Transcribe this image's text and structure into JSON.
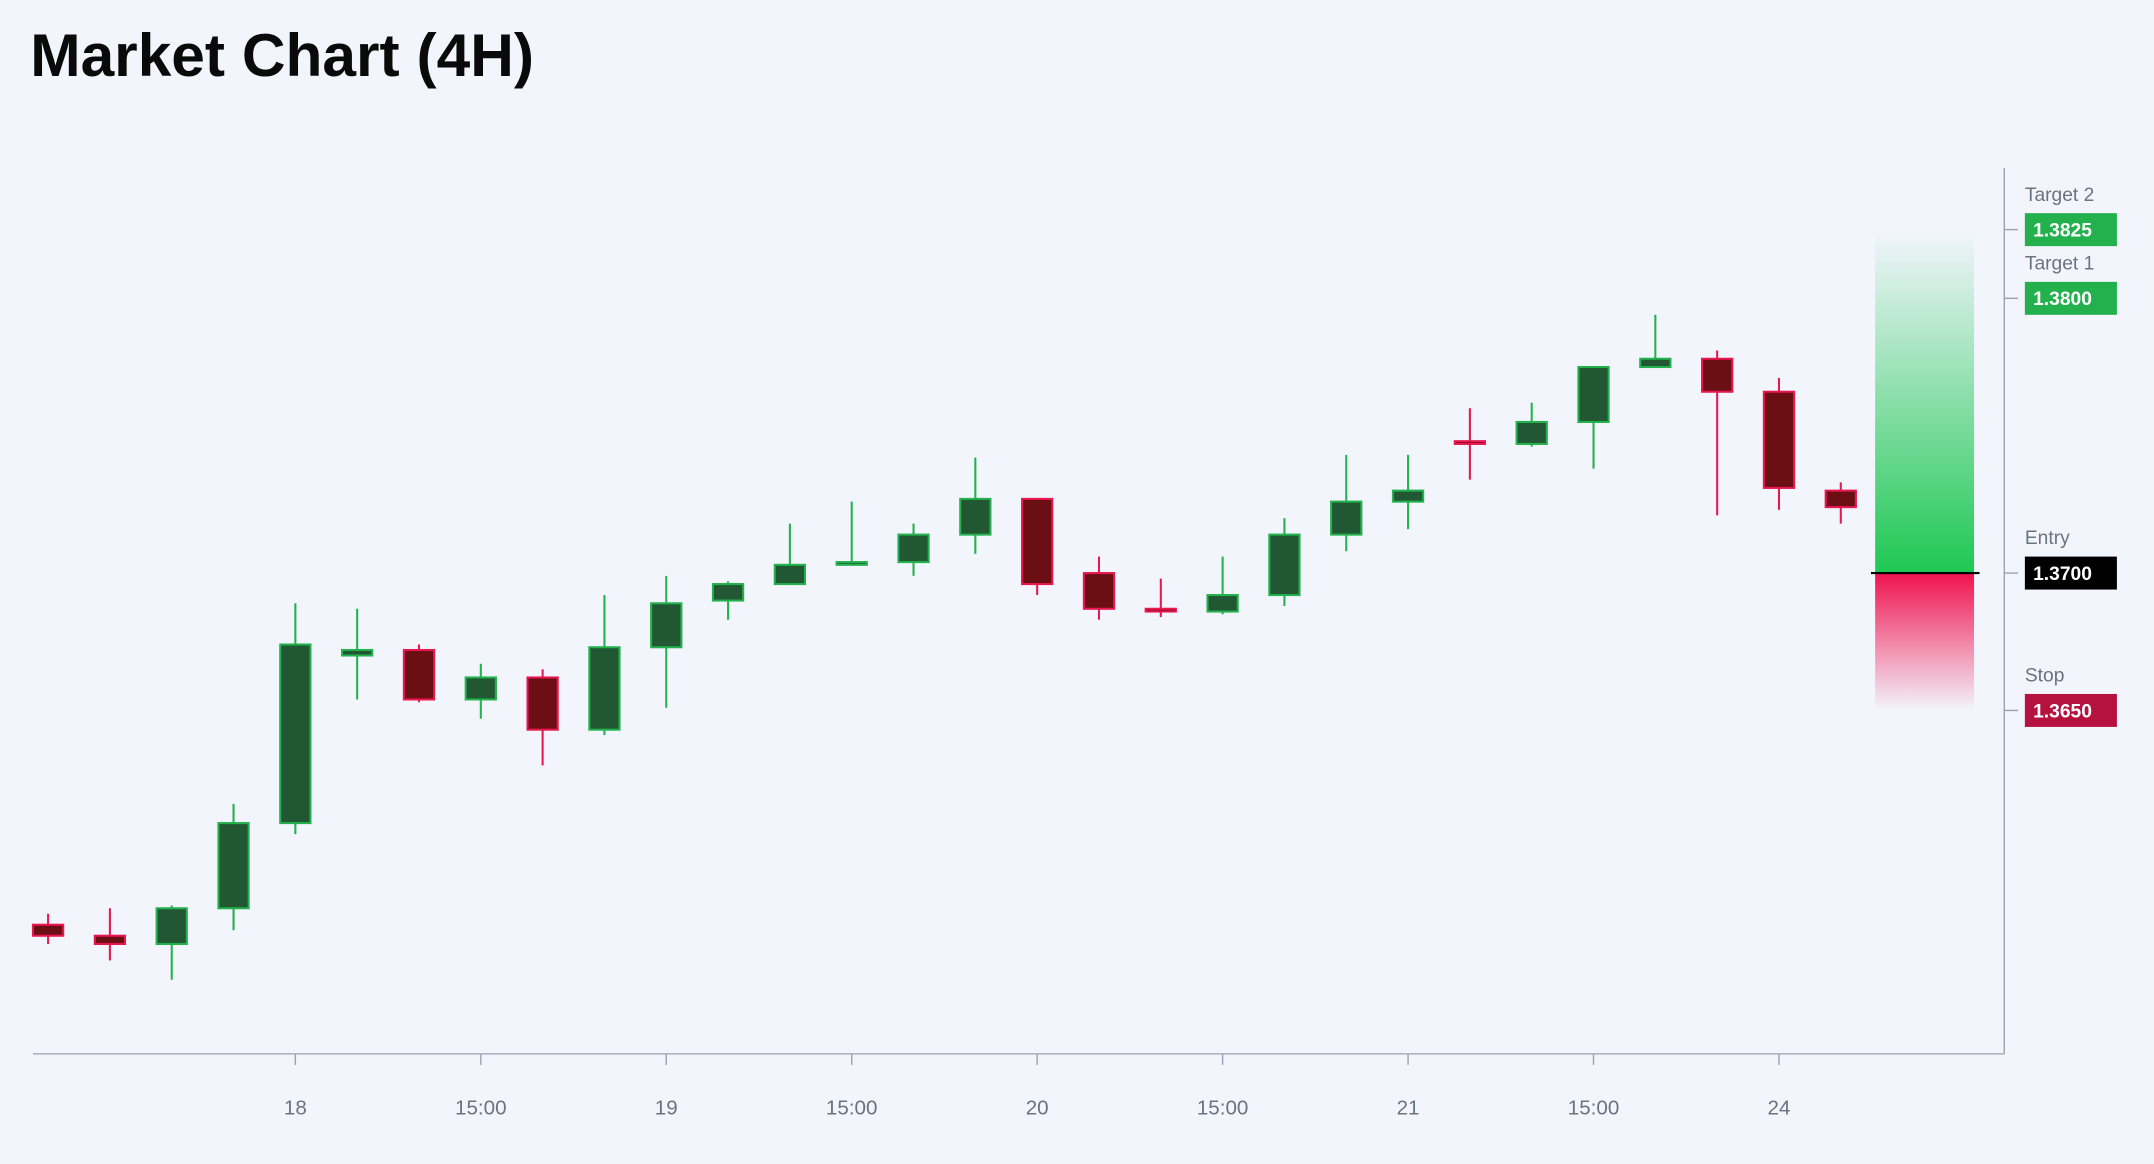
{
  "chart_data": {
    "type": "candlestick",
    "title": "Market Chart (4H)",
    "categories": [
      null,
      null,
      null,
      null,
      "18",
      null,
      null,
      "15:00",
      null,
      null,
      "19",
      null,
      null,
      "15:00",
      null,
      null,
      "20",
      null,
      null,
      "15:00",
      null,
      null,
      "21",
      null,
      null,
      "15:00",
      null,
      null,
      "24",
      null
    ],
    "open": [
      1.3572,
      1.3568,
      1.3565,
      1.3578,
      1.3609,
      1.367,
      1.3672,
      1.3654,
      1.3662,
      1.3643,
      1.3673,
      1.369,
      1.3696,
      1.3703,
      1.3704,
      1.3714,
      1.3727,
      1.37,
      1.3687,
      1.3686,
      1.3692,
      1.3714,
      1.3726,
      1.3748,
      1.3747,
      1.3755,
      1.3775,
      1.3778,
      1.3766,
      1.373
    ],
    "high": [
      1.3576,
      1.3578,
      1.3579,
      1.3616,
      1.3689,
      1.3687,
      1.3674,
      1.3667,
      1.3665,
      1.3692,
      1.3699,
      1.3697,
      1.3718,
      1.3726,
      1.3718,
      1.3742,
      1.3727,
      1.3706,
      1.3698,
      1.3706,
      1.372,
      1.3743,
      1.3743,
      1.376,
      1.3762,
      1.3775,
      1.3794,
      1.3781,
      1.3771,
      1.3733
    ],
    "low": [
      1.3565,
      1.3559,
      1.3552,
      1.357,
      1.3605,
      1.3654,
      1.3653,
      1.3647,
      1.363,
      1.3641,
      1.3651,
      1.3683,
      1.3696,
      1.3703,
      1.3699,
      1.3707,
      1.3692,
      1.3683,
      1.3684,
      1.3685,
      1.3688,
      1.3708,
      1.3716,
      1.3734,
      1.3746,
      1.3738,
      1.3775,
      1.3721,
      1.3723,
      1.3718
    ],
    "close": [
      1.3568,
      1.3565,
      1.3578,
      1.3609,
      1.3674,
      1.3672,
      1.3654,
      1.3662,
      1.3643,
      1.3673,
      1.3689,
      1.3696,
      1.3703,
      1.3704,
      1.3714,
      1.3727,
      1.3696,
      1.3687,
      1.3686,
      1.3692,
      1.3714,
      1.3726,
      1.373,
      1.3747,
      1.3755,
      1.3775,
      1.3778,
      1.3766,
      1.3731,
      1.3724
    ],
    "up_color": "#22b14c",
    "down_color": "#e8174f",
    "ylim": [
      1.3525,
      1.385
    ],
    "levels": {
      "names": [
        "Target 2",
        "Target 1",
        "Entry",
        "Stop"
      ],
      "values": [
        1.3825,
        1.38,
        1.37,
        1.365
      ],
      "value_labels": [
        "1.3825",
        "1.3800",
        "1.3700",
        "1.3650"
      ],
      "colors": [
        "#22b14c",
        "#22b14c",
        "#000000",
        "#b5123f"
      ]
    }
  }
}
